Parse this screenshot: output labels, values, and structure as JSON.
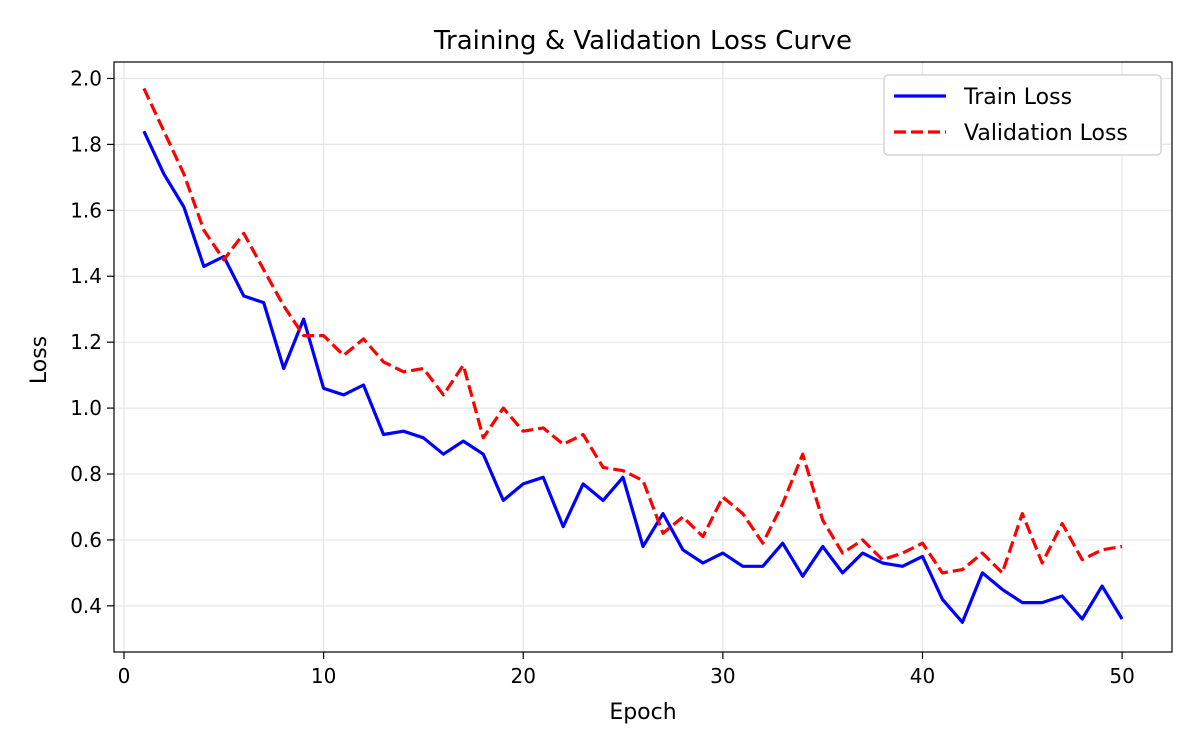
{
  "chart_data": {
    "type": "line",
    "title": "Training & Validation Loss Curve",
    "xlabel": "Epoch",
    "ylabel": "Loss",
    "xlim": [
      -0.5,
      52.5
    ],
    "ylim": [
      0.26,
      2.05
    ],
    "x_ticks": [
      0,
      10,
      20,
      30,
      40,
      50
    ],
    "x_tick_labels": [
      "0",
      "10",
      "20",
      "30",
      "40",
      "50"
    ],
    "y_ticks": [
      0.4,
      0.6,
      0.8,
      1.0,
      1.2,
      1.4,
      1.6,
      1.8,
      2.0
    ],
    "y_tick_labels": [
      "0.4",
      "0.6",
      "0.8",
      "1.0",
      "1.2",
      "1.4",
      "1.6",
      "1.8",
      "2.0"
    ],
    "grid": true,
    "legend_position": "top-right",
    "x": [
      1,
      2,
      3,
      4,
      5,
      6,
      7,
      8,
      9,
      10,
      11,
      12,
      13,
      14,
      15,
      16,
      17,
      18,
      19,
      20,
      21,
      22,
      23,
      24,
      25,
      26,
      27,
      28,
      29,
      30,
      31,
      32,
      33,
      34,
      35,
      36,
      37,
      38,
      39,
      40,
      41,
      42,
      43,
      44,
      45,
      46,
      47,
      48,
      49,
      50
    ],
    "series": [
      {
        "name": "Train Loss",
        "color": "#0000ff",
        "style": "solid",
        "values": [
          1.84,
          1.71,
          1.61,
          1.43,
          1.46,
          1.34,
          1.32,
          1.12,
          1.27,
          1.06,
          1.04,
          1.07,
          0.92,
          0.93,
          0.91,
          0.86,
          0.9,
          0.86,
          0.72,
          0.77,
          0.79,
          0.64,
          0.77,
          0.72,
          0.79,
          0.58,
          0.68,
          0.57,
          0.53,
          0.56,
          0.52,
          0.52,
          0.59,
          0.49,
          0.58,
          0.5,
          0.56,
          0.53,
          0.52,
          0.55,
          0.42,
          0.35,
          0.5,
          0.45,
          0.41,
          0.41,
          0.43,
          0.36,
          0.46,
          0.36
        ]
      },
      {
        "name": "Validation Loss",
        "color": "#ff0000",
        "style": "dashed",
        "values": [
          1.97,
          1.84,
          1.71,
          1.54,
          1.45,
          1.53,
          1.42,
          1.31,
          1.22,
          1.22,
          1.16,
          1.21,
          1.14,
          1.11,
          1.12,
          1.04,
          1.13,
          0.91,
          1.0,
          0.93,
          0.94,
          0.89,
          0.92,
          0.82,
          0.81,
          0.78,
          0.62,
          0.67,
          0.61,
          0.73,
          0.68,
          0.59,
          0.71,
          0.86,
          0.66,
          0.56,
          0.6,
          0.54,
          0.56,
          0.59,
          0.5,
          0.51,
          0.56,
          0.5,
          0.68,
          0.53,
          0.65,
          0.54,
          0.57,
          0.58
        ]
      }
    ]
  }
}
